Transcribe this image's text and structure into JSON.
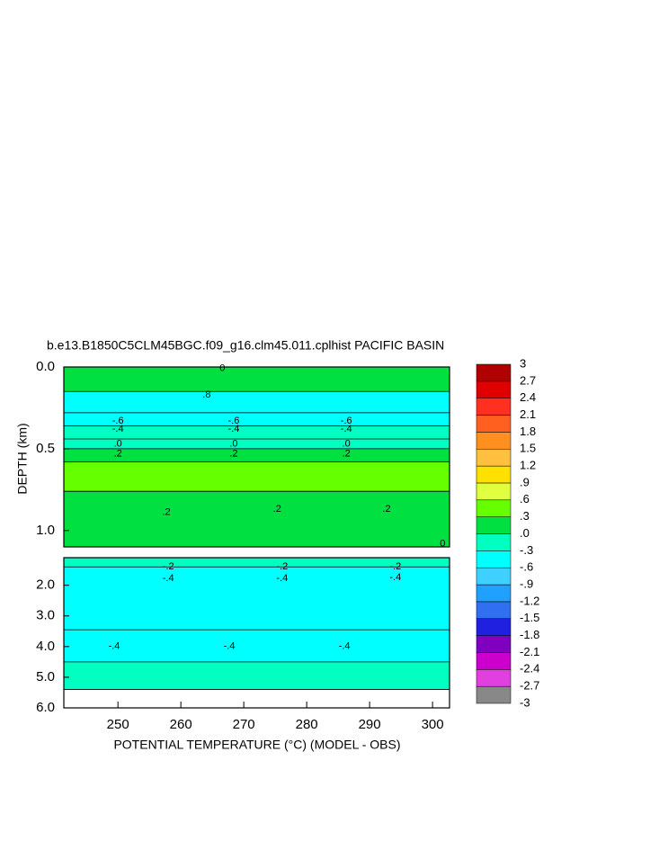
{
  "chart_data": {
    "type": "contour",
    "title": "b.e13.B1850C5CLM45BGC.f09_g16.clm45.011.cplhist PACIFIC BASIN",
    "y_label": "DEPTH (km)",
    "x_label": "POTENTIAL TEMPERATURE (°C) (MODEL - OBS)",
    "xlim": [
      241.4,
      302.7
    ],
    "xticks": [
      250,
      260,
      270,
      280,
      290,
      300
    ],
    "panels": [
      {
        "ylim": [
          0,
          1.1
        ],
        "yticks": [
          {
            "value": 0,
            "label": "0.0"
          },
          {
            "value": 0.5,
            "label": "0.5"
          },
          {
            "value": 1,
            "label": "1.0"
          }
        ]
      },
      {
        "ylim": [
          1.1,
          6.0
        ],
        "yticks": [
          {
            "value": 2,
            "label": "2.0"
          },
          {
            "value": 3,
            "label": "3.0"
          },
          {
            "value": 4,
            "label": "4.0"
          },
          {
            "value": 5,
            "label": "5.0"
          },
          {
            "value": 6,
            "label": "6.0"
          }
        ]
      }
    ],
    "depth_edges": [
      0,
      0.15,
      0.28,
      0.36,
      0.44,
      0.5,
      0.58,
      0.76,
      1.1,
      1.4,
      3.45,
      4.5,
      5.4,
      6.0
    ],
    "values": [
      0.2,
      -0.5,
      -0.4,
      -0.2,
      -0.05,
      0.1,
      0.4,
      0.2,
      -0.2,
      -0.5,
      -0.4,
      -0.2,
      null
    ],
    "contour_labels": [
      {
        "x": 266.6,
        "depth": 0.01,
        "label": "0"
      },
      {
        "x": 264.1,
        "depth": 0.17,
        "label": ".8"
      },
      {
        "x": 250.0,
        "depth": 0.33,
        "label": "-.6"
      },
      {
        "x": 268.4,
        "depth": 0.33,
        "label": "-.6"
      },
      {
        "x": 286.3,
        "depth": 0.33,
        "label": "-.6"
      },
      {
        "x": 250.0,
        "depth": 0.38,
        "label": "-.4"
      },
      {
        "x": 268.4,
        "depth": 0.38,
        "label": "-.4"
      },
      {
        "x": 286.3,
        "depth": 0.38,
        "label": "-.4"
      },
      {
        "x": 250.0,
        "depth": 0.47,
        "label": ".0"
      },
      {
        "x": 268.4,
        "depth": 0.47,
        "label": ".0"
      },
      {
        "x": 286.3,
        "depth": 0.47,
        "label": ".0"
      },
      {
        "x": 250.0,
        "depth": 0.53,
        "label": ".2"
      },
      {
        "x": 268.4,
        "depth": 0.53,
        "label": ".2"
      },
      {
        "x": 286.3,
        "depth": 0.53,
        "label": ".2"
      },
      {
        "x": 257.7,
        "depth": 0.89,
        "label": ".2"
      },
      {
        "x": 275.3,
        "depth": 0.87,
        "label": ".2"
      },
      {
        "x": 292.7,
        "depth": 0.87,
        "label": ".2"
      },
      {
        "x": 301.6,
        "depth": 1.08,
        "label": "0"
      },
      {
        "x": 258.0,
        "depth": 1.4,
        "label": "-.2"
      },
      {
        "x": 258.0,
        "depth": 1.78,
        "label": "-.4"
      },
      {
        "x": 276.1,
        "depth": 1.4,
        "label": "-.2"
      },
      {
        "x": 276.1,
        "depth": 1.78,
        "label": "-.4"
      },
      {
        "x": 294.1,
        "depth": 1.4,
        "label": "-.2"
      },
      {
        "x": 294.1,
        "depth": 1.75,
        "label": "-.4"
      },
      {
        "x": 249.4,
        "depth": 4.0,
        "label": "-.4"
      },
      {
        "x": 267.7,
        "depth": 4.0,
        "label": "-.4"
      },
      {
        "x": 286.0,
        "depth": 4.0,
        "label": "-.4"
      }
    ],
    "colorbar": {
      "lim": [
        -3,
        3
      ],
      "ticks": [
        3,
        2.7,
        2.4,
        2.1,
        1.8,
        1.5,
        1.2,
        {
          "value": 0.9,
          "label": ".9"
        },
        {
          "value": 0.6,
          "label": ".6"
        },
        {
          "value": 0.3,
          "label": ".3"
        },
        {
          "value": 0,
          "label": ".0"
        },
        {
          "value": -0.3,
          "label": "-.3"
        },
        {
          "value": -0.6,
          "label": "-.6"
        },
        {
          "value": -0.9,
          "label": "-.9"
        },
        {
          "value": -1.2,
          "label": "-1.2"
        },
        {
          "value": -1.5,
          "label": "-1.5"
        },
        {
          "value": -1.8,
          "label": "-1.8"
        },
        {
          "value": -2.1,
          "label": "-2.1"
        },
        {
          "value": -2.4,
          "label": "-2.4"
        },
        {
          "value": -2.7,
          "label": "-2.7"
        },
        -3
      ],
      "colors": [
        "#888888",
        "#e040e0",
        "#cc00cc",
        "#8000c0",
        "#2020e0",
        "#3070f0",
        "#20a0ff",
        "#40d0ff",
        "#00ffff",
        "#00ffc0",
        "#00e040",
        "#66ff00",
        "#e0ff40",
        "#ffe000",
        "#ffc040",
        "#ff9020",
        "#ff6020",
        "#ff3020",
        "#e00000",
        "#b00000"
      ]
    }
  }
}
